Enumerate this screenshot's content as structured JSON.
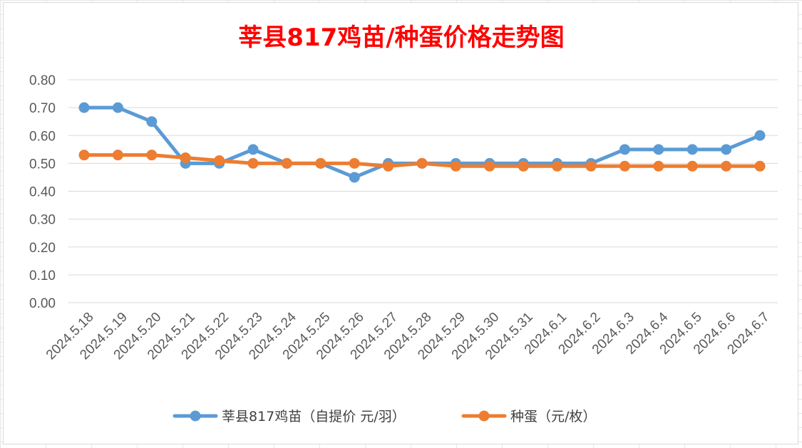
{
  "chart_data": {
    "type": "line",
    "title": "莘县817鸡苗/种蛋价格走势图",
    "categories": [
      "2024.5.18",
      "2024.5.19",
      "2024.5.20",
      "2024.5.21",
      "2024.5.22",
      "2024.5.23",
      "2024.5.24",
      "2024.5.25",
      "2024.5.26",
      "2024.5.27",
      "2024.5.28",
      "2024.5.29",
      "2024.5.30",
      "2024.5.31",
      "2024.6.1",
      "2024.6.2",
      "2024.6.3",
      "2024.6.4",
      "2024.6.5",
      "2024.6.6",
      "2024.6.7"
    ],
    "series": [
      {
        "name": "莘县817鸡苗（自提价 元/羽）",
        "color": "#5b9bd5",
        "values": [
          0.7,
          0.7,
          0.65,
          0.5,
          0.5,
          0.55,
          0.5,
          0.5,
          0.45,
          0.5,
          0.5,
          0.5,
          0.5,
          0.5,
          0.5,
          0.5,
          0.55,
          0.55,
          0.55,
          0.55,
          0.6
        ]
      },
      {
        "name": "种蛋（元/枚）",
        "color": "#ed7d31",
        "values": [
          0.53,
          0.53,
          0.53,
          0.52,
          0.51,
          0.5,
          0.5,
          0.5,
          0.5,
          0.49,
          0.5,
          0.49,
          0.49,
          0.49,
          0.49,
          0.49,
          0.49,
          0.49,
          0.49,
          0.49,
          0.49
        ]
      }
    ],
    "xlabel": "",
    "ylabel": "",
    "ylim": [
      0,
      0.8
    ],
    "yticks": [
      "0.00",
      "0.10",
      "0.20",
      "0.30",
      "0.40",
      "0.50",
      "0.60",
      "0.70",
      "0.80"
    ],
    "grid": true,
    "legend_position": "bottom",
    "title_color": "#ff0000"
  }
}
